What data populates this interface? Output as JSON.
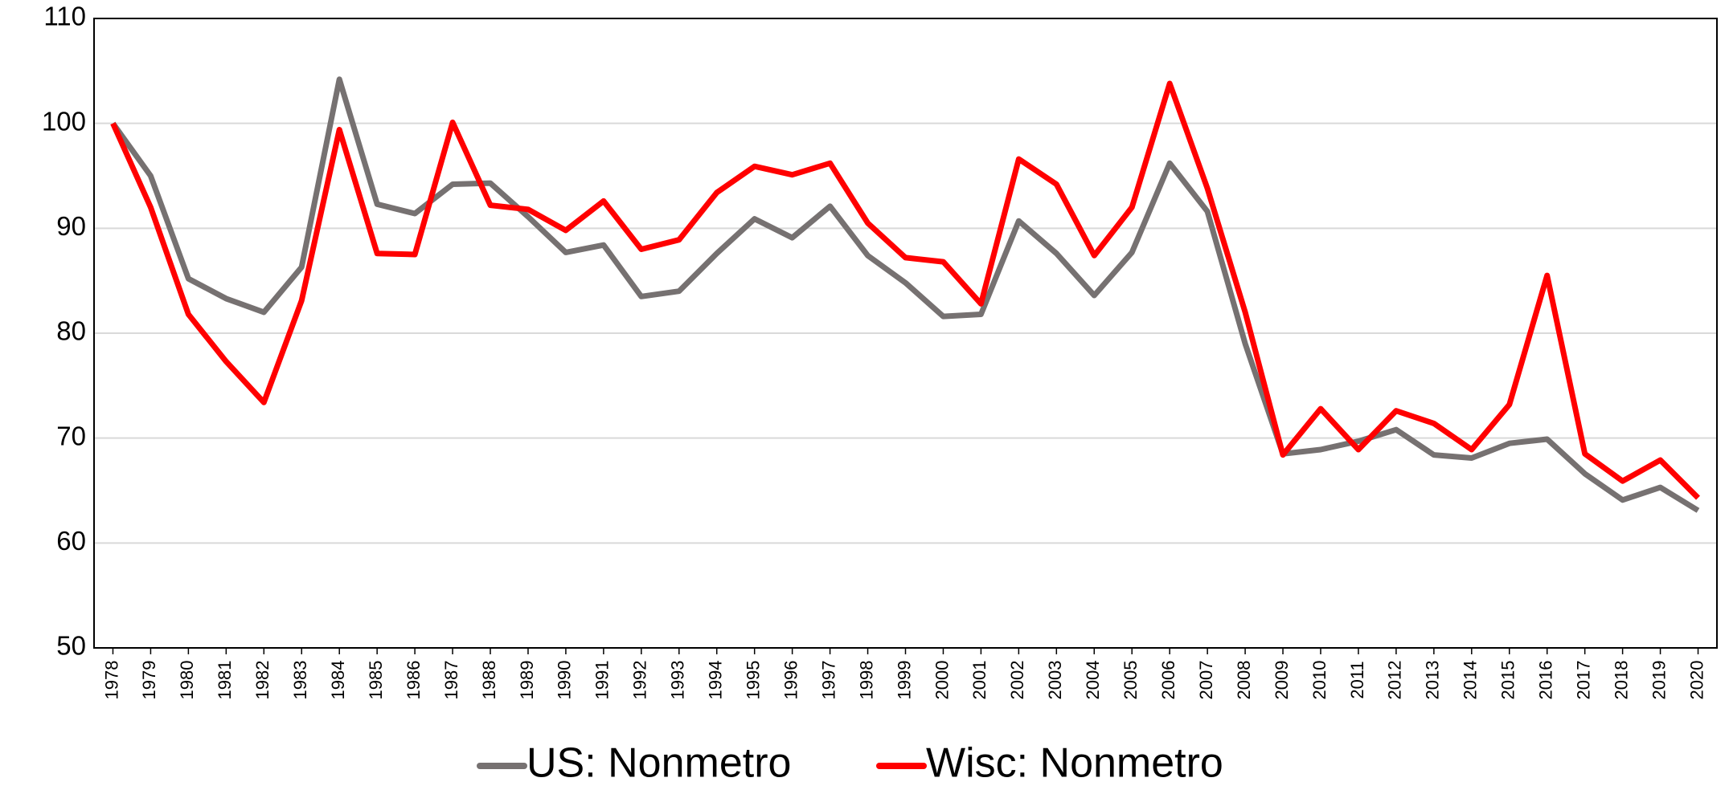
{
  "chart_data": {
    "type": "line",
    "categories": [
      "1978",
      "1979",
      "1980",
      "1981",
      "1982",
      "1983",
      "1984",
      "1985",
      "1986",
      "1987",
      "1988",
      "1989",
      "1990",
      "1991",
      "1992",
      "1993",
      "1994",
      "1995",
      "1996",
      "1997",
      "1998",
      "1999",
      "2000",
      "2001",
      "2002",
      "2003",
      "2004",
      "2005",
      "2006",
      "2007",
      "2008",
      "2009",
      "2010",
      "2011",
      "2012",
      "2013",
      "2014",
      "2015",
      "2016",
      "2017",
      "2018",
      "2019",
      "2020"
    ],
    "series": [
      {
        "name": "US: Nonmetro",
        "color": "#767171",
        "values": [
          100,
          95.0,
          85.2,
          83.3,
          82.0,
          86.3,
          104.2,
          92.3,
          91.4,
          94.2,
          94.3,
          91.1,
          87.7,
          88.4,
          83.5,
          84.0,
          87.6,
          90.9,
          89.1,
          92.1,
          87.4,
          84.8,
          81.6,
          81.8,
          90.7,
          87.6,
          83.6,
          87.7,
          96.2,
          91.6,
          79.0,
          68.5,
          68.9,
          69.7,
          70.8,
          68.4,
          68.1,
          69.5,
          69.9,
          66.6,
          64.1,
          65.3,
          63.1
        ]
      },
      {
        "name": "Wisc: Nonmetro",
        "color": "#ff0000",
        "values": [
          100,
          92.0,
          81.8,
          77.3,
          73.4,
          83.1,
          99.4,
          87.6,
          87.5,
          100.1,
          92.2,
          91.8,
          89.8,
          92.6,
          88.0,
          88.9,
          93.4,
          95.9,
          95.1,
          96.2,
          90.5,
          87.2,
          86.8,
          82.8,
          96.6,
          94.2,
          87.4,
          92.0,
          103.8,
          93.8,
          82.0,
          68.4,
          72.8,
          68.9,
          72.6,
          71.4,
          68.9,
          73.2,
          85.5,
          68.5,
          65.9,
          67.9,
          64.3
        ]
      }
    ],
    "ylim": [
      50,
      110
    ],
    "yticks": [
      50,
      60,
      70,
      80,
      90,
      100,
      110
    ],
    "grid": true,
    "legend": "bottom"
  }
}
